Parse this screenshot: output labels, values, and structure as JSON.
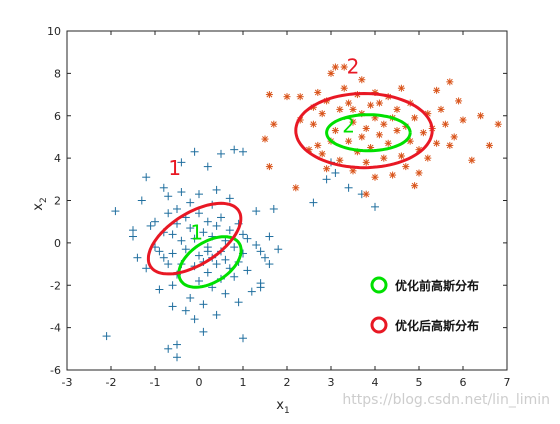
{
  "chart_data": {
    "type": "scatter",
    "xlabel": "x",
    "xlabel_sub": "1",
    "ylabel": "x",
    "ylabel_sub": "2",
    "xlim": [
      -3,
      7
    ],
    "ylim": [
      -6,
      10
    ],
    "xticks": [
      -3,
      -2,
      -1,
      0,
      1,
      2,
      3,
      4,
      5,
      6,
      7
    ],
    "yticks": [
      -6,
      -4,
      -2,
      0,
      2,
      4,
      6,
      8,
      10
    ],
    "grid": false,
    "legend_position": "bottom-right",
    "series": [
      {
        "marker": "plus",
        "color": "#1f6e9e",
        "points": [
          [
            -2.1,
            -4.4
          ],
          [
            -1.9,
            1.5
          ],
          [
            -1.5,
            0.6
          ],
          [
            -1.5,
            0.3
          ],
          [
            -1.4,
            -0.7
          ],
          [
            -1.3,
            2.0
          ],
          [
            -1.2,
            -1.2
          ],
          [
            -1.2,
            3.1
          ],
          [
            -1.1,
            0.8
          ],
          [
            -1.0,
            -0.2
          ],
          [
            -1.0,
            1.0
          ],
          [
            -0.9,
            -2.2
          ],
          [
            -0.9,
            -0.4
          ],
          [
            -0.8,
            2.6
          ],
          [
            -0.8,
            0.5
          ],
          [
            -0.8,
            -0.7
          ],
          [
            -0.7,
            1.4
          ],
          [
            -0.7,
            -1.0
          ],
          [
            -0.7,
            2.2
          ],
          [
            -0.6,
            -0.5
          ],
          [
            -0.6,
            0.4
          ],
          [
            -0.6,
            -2.0
          ],
          [
            -0.6,
            -3.0
          ],
          [
            -0.5,
            0.9
          ],
          [
            -0.5,
            -1.5
          ],
          [
            -0.5,
            1.6
          ],
          [
            -0.5,
            -4.8
          ],
          [
            -0.5,
            -5.4
          ],
          [
            -0.4,
            -1.0
          ],
          [
            -0.4,
            0.1
          ],
          [
            -0.4,
            2.4
          ],
          [
            -0.4,
            3.8
          ],
          [
            -0.3,
            -3.2
          ],
          [
            -0.3,
            1.2
          ],
          [
            -0.3,
            -0.3
          ],
          [
            -0.2,
            0.7
          ],
          [
            -0.2,
            -2.6
          ],
          [
            -0.2,
            1.9
          ],
          [
            -0.1,
            -1.1
          ],
          [
            -0.1,
            0.2
          ],
          [
            -0.1,
            -3.6
          ],
          [
            -0.1,
            4.3
          ],
          [
            0.0,
            -0.6
          ],
          [
            0.0,
            1.4
          ],
          [
            0.0,
            -1.8
          ],
          [
            0.0,
            2.3
          ],
          [
            0.1,
            0.5
          ],
          [
            0.1,
            -0.9
          ],
          [
            0.1,
            -2.9
          ],
          [
            0.1,
            -4.2
          ],
          [
            0.2,
            1.0
          ],
          [
            0.2,
            -0.2
          ],
          [
            0.2,
            -1.4
          ],
          [
            0.2,
            3.6
          ],
          [
            0.3,
            0.3
          ],
          [
            0.3,
            -0.7
          ],
          [
            0.3,
            1.8
          ],
          [
            0.3,
            -2.1
          ],
          [
            0.4,
            -1.0
          ],
          [
            0.4,
            0.8
          ],
          [
            0.4,
            2.5
          ],
          [
            0.4,
            -3.4
          ],
          [
            0.5,
            -0.4
          ],
          [
            0.5,
            1.2
          ],
          [
            0.5,
            -1.7
          ],
          [
            0.5,
            4.2
          ],
          [
            0.6,
            0.1
          ],
          [
            0.6,
            -0.8
          ],
          [
            0.6,
            -2.4
          ],
          [
            0.7,
            0.6
          ],
          [
            0.7,
            -1.2
          ],
          [
            0.7,
            2.1
          ],
          [
            0.8,
            -0.2
          ],
          [
            0.8,
            4.4
          ],
          [
            0.8,
            -1.6
          ],
          [
            0.9,
            0.9
          ],
          [
            0.9,
            -0.9
          ],
          [
            0.9,
            -2.8
          ],
          [
            1.0,
            -4.5
          ],
          [
            1.0,
            0.4
          ],
          [
            1.0,
            -0.5
          ],
          [
            1.0,
            4.3
          ],
          [
            1.1,
            0.2
          ],
          [
            1.1,
            -1.3
          ],
          [
            1.2,
            -2.3
          ],
          [
            1.3,
            -0.1
          ],
          [
            1.3,
            1.5
          ],
          [
            1.4,
            -1.9
          ],
          [
            1.4,
            -2.1
          ],
          [
            1.4,
            -0.4
          ],
          [
            1.5,
            -0.7
          ],
          [
            1.6,
            0.3
          ],
          [
            1.6,
            -1.0
          ],
          [
            1.7,
            1.6
          ],
          [
            1.8,
            -0.3
          ],
          [
            2.6,
            1.9
          ],
          [
            2.9,
            3.0
          ],
          [
            3.0,
            3.8
          ],
          [
            3.1,
            3.3
          ],
          [
            3.4,
            2.6
          ],
          [
            3.7,
            2.3
          ],
          [
            4.0,
            1.7
          ],
          [
            -0.7,
            -5.0
          ],
          [
            0.2,
            -0.4
          ]
        ]
      },
      {
        "marker": "asterisk",
        "color": "#d95319",
        "points": [
          [
            1.5,
            4.9
          ],
          [
            1.6,
            3.6
          ],
          [
            1.6,
            7.0
          ],
          [
            1.7,
            5.6
          ],
          [
            2.0,
            6.9
          ],
          [
            2.2,
            2.6
          ],
          [
            2.3,
            5.8
          ],
          [
            2.3,
            6.9
          ],
          [
            2.5,
            4.4
          ],
          [
            2.6,
            6.4
          ],
          [
            2.6,
            5.6
          ],
          [
            2.7,
            4.6
          ],
          [
            2.7,
            7.1
          ],
          [
            2.8,
            6.1
          ],
          [
            2.8,
            4.2
          ],
          [
            2.9,
            6.7
          ],
          [
            3.0,
            4.8
          ],
          [
            3.0,
            8.0
          ],
          [
            3.1,
            5.3
          ],
          [
            3.2,
            6.3
          ],
          [
            3.2,
            3.9
          ],
          [
            3.3,
            7.3
          ],
          [
            3.3,
            8.3
          ],
          [
            3.4,
            4.8
          ],
          [
            3.4,
            6.6
          ],
          [
            3.5,
            5.7
          ],
          [
            3.5,
            3.4
          ],
          [
            3.6,
            7.0
          ],
          [
            3.6,
            4.3
          ],
          [
            3.7,
            6.1
          ],
          [
            3.7,
            5.0
          ],
          [
            3.7,
            7.7
          ],
          [
            3.8,
            5.4
          ],
          [
            3.8,
            3.8
          ],
          [
            3.9,
            6.5
          ],
          [
            3.9,
            4.5
          ],
          [
            4.0,
            5.9
          ],
          [
            4.0,
            7.1
          ],
          [
            4.0,
            3.1
          ],
          [
            4.1,
            5.1
          ],
          [
            4.1,
            6.6
          ],
          [
            4.2,
            4.0
          ],
          [
            4.2,
            5.6
          ],
          [
            4.3,
            6.9
          ],
          [
            4.3,
            4.7
          ],
          [
            4.4,
            3.2
          ],
          [
            4.4,
            5.9
          ],
          [
            4.5,
            5.3
          ],
          [
            4.5,
            6.3
          ],
          [
            4.6,
            4.1
          ],
          [
            4.7,
            5.5
          ],
          [
            4.7,
            3.6
          ],
          [
            4.8,
            6.6
          ],
          [
            4.8,
            4.8
          ],
          [
            4.9,
            5.9
          ],
          [
            5.0,
            4.4
          ],
          [
            5.0,
            3.3
          ],
          [
            5.1,
            5.2
          ],
          [
            5.2,
            6.1
          ],
          [
            5.2,
            4.0
          ],
          [
            5.3,
            5.4
          ],
          [
            5.4,
            7.2
          ],
          [
            5.4,
            4.7
          ],
          [
            5.5,
            6.3
          ],
          [
            5.6,
            5.6
          ],
          [
            5.7,
            7.6
          ],
          [
            5.7,
            4.6
          ],
          [
            5.8,
            5.0
          ],
          [
            5.9,
            6.7
          ],
          [
            6.0,
            5.8
          ],
          [
            6.2,
            3.9
          ],
          [
            6.4,
            6.0
          ],
          [
            6.6,
            4.6
          ],
          [
            6.8,
            5.6
          ],
          [
            4.9,
            2.7
          ],
          [
            3.8,
            2.3
          ],
          [
            2.9,
            3.5
          ],
          [
            4.6,
            7.3
          ],
          [
            3.1,
            8.3
          ],
          [
            3.5,
            6.3
          ]
        ]
      }
    ],
    "ellipses": [
      {
        "group": "before",
        "color": "#00e000",
        "cx": 0.25,
        "cy": -0.9,
        "rx": 1.25,
        "ry": 0.6,
        "angle_deg": 70
      },
      {
        "group": "after",
        "color": "#e81824",
        "cx": -0.1,
        "cy": 0.2,
        "rx": 1.8,
        "ry": 0.8,
        "angle_deg": 65
      },
      {
        "group": "before",
        "color": "#00e000",
        "cx": 3.85,
        "cy": 5.2,
        "rx": 0.95,
        "ry": 0.85,
        "angle_deg": 0
      },
      {
        "group": "after",
        "color": "#e81824",
        "cx": 3.75,
        "cy": 5.3,
        "rx": 1.55,
        "ry": 1.75,
        "angle_deg": 0
      }
    ],
    "annotations": [
      {
        "text": "1",
        "x": -0.55,
        "y": 3.2,
        "color": "#e81824"
      },
      {
        "text": "2",
        "x": 3.5,
        "y": 8.0,
        "color": "#e81824"
      },
      {
        "text": "1",
        "x": -0.05,
        "y": 0.15,
        "color": "#00e000"
      },
      {
        "text": "2",
        "x": 3.4,
        "y": 5.2,
        "color": "#00e000"
      }
    ],
    "legend": [
      {
        "label": "优化前高斯分布",
        "color": "#00e000"
      },
      {
        "label": "优化后高斯分布",
        "color": "#e81824"
      }
    ],
    "watermark": "https://blog.csdn.net/lin_limin"
  }
}
